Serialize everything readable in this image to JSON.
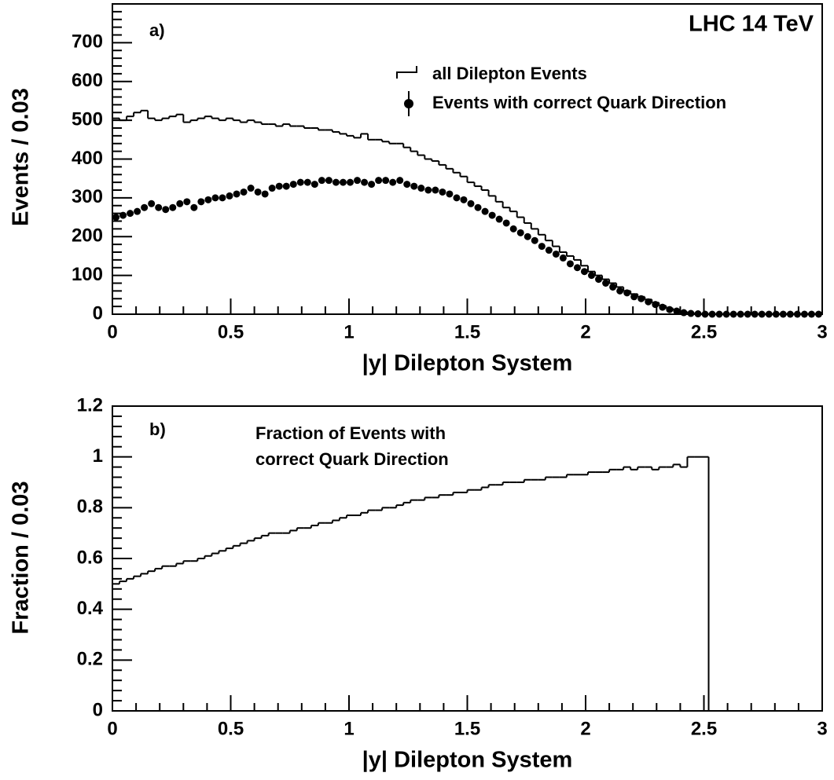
{
  "chart_data": [
    {
      "type": "histogram",
      "panel_label": "a)",
      "title": "LHC 14 TeV",
      "xlabel": "|y| Dilepton System",
      "ylabel": "Events / 0.03",
      "bins": [
        0,
        0.03,
        0.06,
        0.09,
        0.12,
        0.15,
        0.18,
        0.21,
        0.24,
        0.27,
        0.3,
        0.33,
        0.36,
        0.39,
        0.42,
        0.45,
        0.48,
        0.51,
        0.54,
        0.57,
        0.6,
        0.63,
        0.66,
        0.69,
        0.72,
        0.75,
        0.78,
        0.81,
        0.84,
        0.87,
        0.9,
        0.93,
        0.96,
        0.99,
        1.02,
        1.05,
        1.08,
        1.11,
        1.14,
        1.17,
        1.2,
        1.23,
        1.26,
        1.29,
        1.32,
        1.35,
        1.38,
        1.41,
        1.44,
        1.47,
        1.5,
        1.53,
        1.56,
        1.59,
        1.62,
        1.65,
        1.68,
        1.71,
        1.74,
        1.77,
        1.8,
        1.83,
        1.86,
        1.89,
        1.92,
        1.95,
        1.98,
        2.01,
        2.04,
        2.07,
        2.1,
        2.13,
        2.16,
        2.19,
        2.22,
        2.25,
        2.28,
        2.31,
        2.34,
        2.37,
        2.4,
        2.43,
        2.46,
        2.49,
        2.52,
        2.55,
        2.58,
        2.61,
        2.64,
        2.67,
        2.7,
        2.73,
        2.76,
        2.79,
        2.82,
        2.85,
        2.88,
        2.91,
        2.94,
        2.97,
        3
      ],
      "series": [
        {
          "name": "all Dilepton Events",
          "style": "step",
          "color": "#000000",
          "values": [
            505,
            500,
            510,
            520,
            525,
            505,
            500,
            505,
            510,
            515,
            495,
            500,
            505,
            510,
            505,
            500,
            505,
            500,
            495,
            500,
            495,
            490,
            490,
            485,
            490,
            485,
            485,
            480,
            480,
            475,
            475,
            470,
            465,
            460,
            455,
            465,
            450,
            450,
            445,
            440,
            440,
            430,
            420,
            410,
            400,
            395,
            385,
            375,
            365,
            355,
            340,
            330,
            320,
            305,
            290,
            275,
            265,
            250,
            235,
            220,
            205,
            190,
            175,
            160,
            150,
            140,
            125,
            110,
            100,
            90,
            80,
            70,
            60,
            52,
            45,
            38,
            30,
            22,
            15,
            10,
            6,
            3,
            1,
            0,
            0,
            0,
            0,
            0,
            0,
            0,
            0,
            0,
            0,
            0,
            0,
            0,
            0,
            0,
            0,
            0
          ]
        },
        {
          "name": "Events with correct Quark Direction",
          "style": "points",
          "color": "#000000",
          "values": [
            250,
            255,
            260,
            265,
            275,
            285,
            275,
            270,
            275,
            285,
            290,
            275,
            290,
            295,
            300,
            300,
            305,
            310,
            315,
            325,
            315,
            310,
            325,
            330,
            330,
            335,
            340,
            340,
            335,
            345,
            345,
            340,
            340,
            340,
            345,
            340,
            335,
            345,
            345,
            340,
            345,
            335,
            330,
            325,
            320,
            320,
            315,
            310,
            300,
            295,
            285,
            275,
            265,
            255,
            245,
            235,
            220,
            210,
            200,
            190,
            175,
            165,
            155,
            145,
            130,
            120,
            110,
            100,
            90,
            80,
            70,
            60,
            55,
            45,
            40,
            32,
            25,
            18,
            12,
            8,
            4,
            2,
            1,
            0,
            0,
            0,
            0,
            0,
            0,
            0,
            0,
            0,
            0,
            0,
            0,
            0,
            0,
            0,
            0,
            0
          ]
        }
      ],
      "xlim": [
        0,
        3
      ],
      "xticks": [
        0,
        0.5,
        1,
        1.5,
        2,
        2.5,
        3
      ],
      "ylim": [
        0,
        800
      ],
      "yticks": [
        0,
        100,
        200,
        300,
        400,
        500,
        600,
        700
      ]
    },
    {
      "type": "histogram",
      "panel_label": "b)",
      "annotation": [
        "Fraction of Events with",
        "correct Quark Direction"
      ],
      "xlabel": "|y| Dilepton System",
      "ylabel": "Fraction / 0.03",
      "bins": [
        0,
        0.03,
        0.06,
        0.09,
        0.12,
        0.15,
        0.18,
        0.21,
        0.24,
        0.27,
        0.3,
        0.33,
        0.36,
        0.39,
        0.42,
        0.45,
        0.48,
        0.51,
        0.54,
        0.57,
        0.6,
        0.63,
        0.66,
        0.69,
        0.72,
        0.75,
        0.78,
        0.81,
        0.84,
        0.87,
        0.9,
        0.93,
        0.96,
        0.99,
        1.02,
        1.05,
        1.08,
        1.11,
        1.14,
        1.17,
        1.2,
        1.23,
        1.26,
        1.29,
        1.32,
        1.35,
        1.38,
        1.41,
        1.44,
        1.47,
        1.5,
        1.53,
        1.56,
        1.59,
        1.62,
        1.65,
        1.68,
        1.71,
        1.74,
        1.77,
        1.8,
        1.83,
        1.86,
        1.89,
        1.92,
        1.95,
        1.98,
        2.01,
        2.04,
        2.07,
        2.1,
        2.13,
        2.16,
        2.19,
        2.22,
        2.25,
        2.28,
        2.31,
        2.34,
        2.37,
        2.4,
        2.43,
        2.46,
        2.49,
        2.52,
        2.55,
        2.58,
        2.61,
        2.64,
        2.67,
        2.7,
        2.73,
        2.76,
        2.79,
        2.82,
        2.85,
        2.88,
        2.91,
        2.94,
        2.97,
        3
      ],
      "series": [
        {
          "style": "step",
          "color": "#000000",
          "values": [
            0.5,
            0.51,
            0.52,
            0.53,
            0.54,
            0.55,
            0.56,
            0.57,
            0.57,
            0.58,
            0.59,
            0.59,
            0.6,
            0.61,
            0.62,
            0.63,
            0.64,
            0.65,
            0.66,
            0.67,
            0.68,
            0.69,
            0.7,
            0.7,
            0.7,
            0.71,
            0.72,
            0.72,
            0.73,
            0.74,
            0.74,
            0.75,
            0.76,
            0.77,
            0.77,
            0.78,
            0.79,
            0.79,
            0.8,
            0.8,
            0.81,
            0.82,
            0.83,
            0.83,
            0.84,
            0.84,
            0.85,
            0.85,
            0.86,
            0.86,
            0.87,
            0.87,
            0.88,
            0.89,
            0.89,
            0.9,
            0.9,
            0.9,
            0.91,
            0.91,
            0.91,
            0.92,
            0.92,
            0.92,
            0.93,
            0.93,
            0.93,
            0.94,
            0.94,
            0.94,
            0.95,
            0.95,
            0.96,
            0.95,
            0.96,
            0.96,
            0.95,
            0.96,
            0.96,
            0.97,
            0.96,
            1,
            1,
            1,
            0,
            0,
            0,
            0,
            0,
            0,
            0,
            0,
            0,
            0,
            0,
            0,
            0,
            0,
            0,
            0
          ]
        }
      ],
      "xlim": [
        0,
        3
      ],
      "xticks": [
        0,
        0.5,
        1,
        1.5,
        2,
        2.5,
        3
      ],
      "ylim": [
        0,
        1.2
      ],
      "yticks": [
        0,
        0.2,
        0.4,
        0.6,
        0.8,
        1,
        1.2
      ]
    }
  ]
}
